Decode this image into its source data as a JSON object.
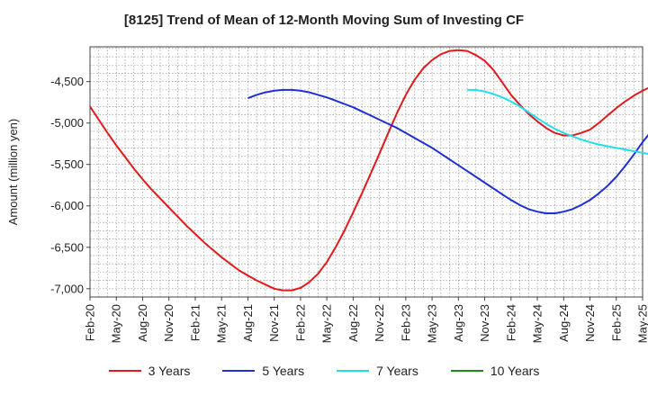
{
  "chart_data": {
    "type": "line",
    "title": "[8125]  Trend of Mean of 12-Month Moving Sum of Investing CF",
    "xlabel": "",
    "ylabel": "Amount (million yen)",
    "x_tick_labels": [
      "Feb-20",
      "May-20",
      "Aug-20",
      "Nov-20",
      "Feb-21",
      "May-21",
      "Aug-21",
      "Nov-21",
      "Feb-22",
      "May-22",
      "Aug-22",
      "Nov-22",
      "Feb-23",
      "May-23",
      "Aug-23",
      "Nov-23",
      "Feb-24",
      "May-24",
      "Aug-24",
      "Nov-24",
      "Feb-25",
      "May-25"
    ],
    "y_ticks": [
      -7000,
      -6500,
      -6000,
      -5500,
      -5000,
      -4500
    ],
    "y_tick_labels": [
      "-7,000",
      "-6,500",
      "-6,000",
      "-5,500",
      "-5,000",
      "-4,500"
    ],
    "ylim": [
      -7100,
      -4080
    ],
    "grid": true,
    "legend_position": "bottom",
    "series": [
      {
        "name": "3 Years",
        "color": "#e31a1c",
        "start_month_index": 0,
        "values": [
          -4800,
          -4960,
          -5120,
          -5270,
          -5410,
          -5550,
          -5680,
          -5800,
          -5910,
          -6020,
          -6130,
          -6240,
          -6340,
          -6440,
          -6530,
          -6620,
          -6700,
          -6780,
          -6840,
          -6900,
          -6950,
          -7000,
          -7020,
          -7020,
          -6990,
          -6920,
          -6820,
          -6680,
          -6500,
          -6300,
          -6080,
          -5850,
          -5610,
          -5370,
          -5120,
          -4880,
          -4660,
          -4480,
          -4340,
          -4240,
          -4170,
          -4130,
          -4120,
          -4130,
          -4180,
          -4250,
          -4360,
          -4510,
          -4660,
          -4780,
          -4890,
          -4980,
          -5060,
          -5120,
          -5150,
          -5150,
          -5120,
          -5080,
          -5000,
          -4910,
          -4820,
          -4740,
          -4670,
          -4610,
          -4560,
          -4530,
          -4520
        ]
      },
      {
        "name": "5 Years",
        "color": "#1f2fd6",
        "start_month_index": 18,
        "values": [
          -4700,
          -4660,
          -4630,
          -4610,
          -4600,
          -4600,
          -4610,
          -4630,
          -4660,
          -4690,
          -4730,
          -4770,
          -4810,
          -4860,
          -4910,
          -4960,
          -5010,
          -5060,
          -5120,
          -5180,
          -5240,
          -5300,
          -5370,
          -5440,
          -5510,
          -5580,
          -5650,
          -5720,
          -5790,
          -5860,
          -5930,
          -5990,
          -6040,
          -6070,
          -6090,
          -6090,
          -6070,
          -6040,
          -5990,
          -5930,
          -5850,
          -5760,
          -5650,
          -5520,
          -5380,
          -5230,
          -5100,
          -4980,
          -4870,
          -4770,
          -4680,
          -4590,
          -4510
        ]
      },
      {
        "name": "7 Years",
        "color": "#1ee0ec",
        "start_month_index": 43,
        "values": [
          -4600,
          -4600,
          -4620,
          -4650,
          -4690,
          -4740,
          -4800,
          -4870,
          -4940,
          -5010,
          -5070,
          -5120,
          -5160,
          -5200,
          -5230,
          -5260,
          -5280,
          -5300,
          -5320,
          -5340,
          -5360,
          -5380
        ]
      },
      {
        "name": "10 Years",
        "color": "#1a8c1a",
        "start_month_index": 0,
        "values": []
      }
    ]
  }
}
